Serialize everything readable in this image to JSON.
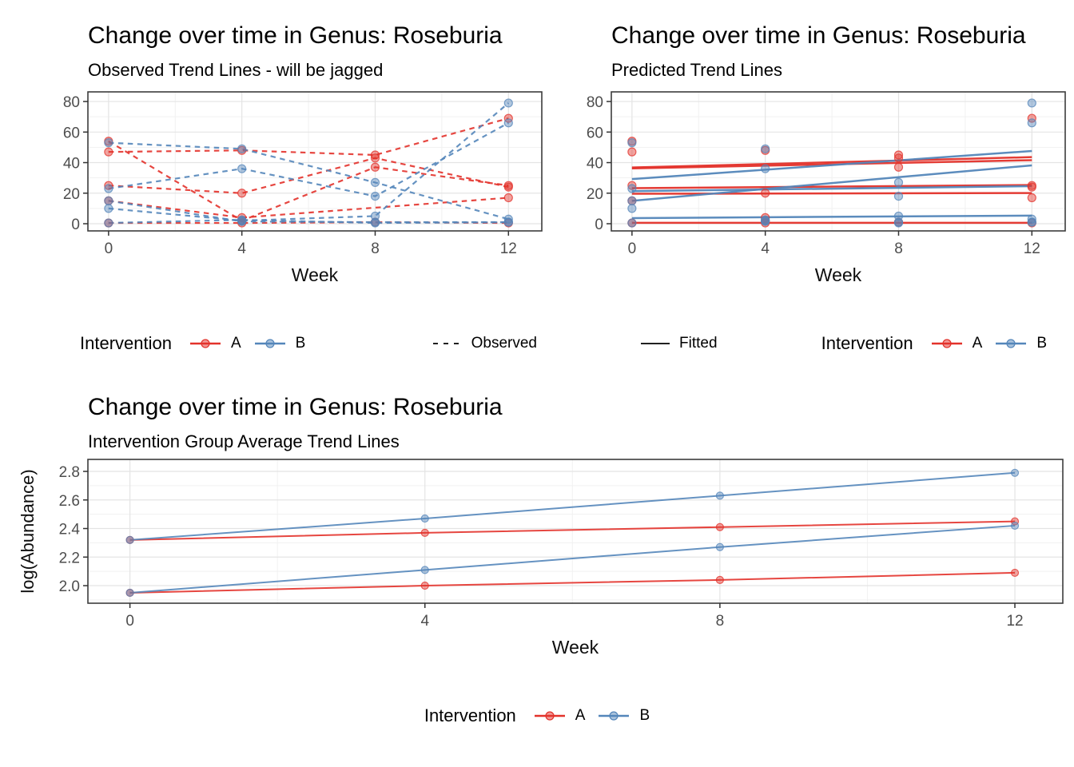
{
  "colors": {
    "intervention_a": "#e3322b",
    "intervention_b": "#5486ba",
    "key_black": "#000000",
    "axis_text": "#4d4d4d",
    "axis_title": "#0d0d0d",
    "grid_major": "#e4e4e4",
    "grid_minor": "#f1f1f1",
    "panel_border": "#3c3c3c",
    "tick_mark": "#333333"
  },
  "chart_data": [
    {
      "type": "line",
      "title": "Change over time in Genus: Roseburia",
      "subtitle": "Observed Trend Lines - will be jagged",
      "xlabel": "Week",
      "ylabel": "",
      "weeks": [
        0,
        4,
        8,
        12
      ],
      "x_ticks": [
        {
          "v": 0,
          "label": "0"
        },
        {
          "v": 4,
          "label": "4"
        },
        {
          "v": 8,
          "label": "8"
        },
        {
          "v": 12,
          "label": "12"
        }
      ],
      "x_minor": [
        2,
        6,
        10
      ],
      "y_ticks": [
        {
          "v": 0,
          "label": "0"
        },
        {
          "v": 20,
          "label": "20"
        },
        {
          "v": 40,
          "label": "40"
        },
        {
          "v": 60,
          "label": "60"
        },
        {
          "v": 80,
          "label": "80"
        }
      ],
      "y_minor": [
        10,
        30,
        50,
        70
      ],
      "x_domain": [
        -0.62,
        13.0
      ],
      "y_domain": [
        -4.7,
        86.3
      ],
      "line_style": "dashed",
      "draw_lines": true,
      "series": [
        {
          "group": "A",
          "values": [
            54,
            2,
            37,
            25
          ]
        },
        {
          "group": "A",
          "values": [
            47,
            48,
            45,
            69
          ]
        },
        {
          "group": "A",
          "values": [
            25,
            20,
            43,
            24
          ]
        },
        {
          "group": "A",
          "values": [
            15,
            4,
            null,
            17
          ]
        },
        {
          "group": "A",
          "values": [
            0.5,
            0.5,
            1,
            0.5
          ]
        },
        {
          "group": "B",
          "values": [
            53,
            49,
            27,
            3
          ]
        },
        {
          "group": "B",
          "values": [
            23,
            36,
            18,
            66
          ]
        },
        {
          "group": "B",
          "values": [
            10,
            2,
            5,
            79
          ]
        },
        {
          "group": "B",
          "values": [
            15,
            1.5,
            1,
            1
          ]
        },
        {
          "group": "B",
          "values": [
            0.5,
            2.5,
            0.5,
            1
          ]
        }
      ],
      "fits": []
    },
    {
      "type": "line",
      "title": "Change over time in Genus: Roseburia",
      "subtitle": "Predicted Trend Lines",
      "xlabel": "Week",
      "ylabel": "",
      "weeks": [
        0,
        4,
        8,
        12
      ],
      "x_ticks": [
        {
          "v": 0,
          "label": "0"
        },
        {
          "v": 4,
          "label": "4"
        },
        {
          "v": 8,
          "label": "8"
        },
        {
          "v": 12,
          "label": "12"
        }
      ],
      "x_minor": [
        2,
        6,
        10
      ],
      "y_ticks": [
        {
          "v": 0,
          "label": "0"
        },
        {
          "v": 20,
          "label": "20"
        },
        {
          "v": 40,
          "label": "40"
        },
        {
          "v": 60,
          "label": "60"
        },
        {
          "v": 80,
          "label": "80"
        }
      ],
      "y_minor": [
        10,
        30,
        50,
        70
      ],
      "x_domain": [
        -0.62,
        13.0
      ],
      "y_domain": [
        -4.7,
        86.3
      ],
      "line_style": "solid",
      "draw_lines": false,
      "series": [
        {
          "group": "A",
          "values": [
            54,
            2,
            37,
            25
          ]
        },
        {
          "group": "A",
          "values": [
            47,
            48,
            45,
            69
          ]
        },
        {
          "group": "A",
          "values": [
            25,
            20,
            43,
            24
          ]
        },
        {
          "group": "A",
          "values": [
            15,
            4,
            null,
            17
          ]
        },
        {
          "group": "A",
          "values": [
            0.5,
            0.5,
            1,
            0.5
          ]
        },
        {
          "group": "B",
          "values": [
            53,
            49,
            27,
            3
          ]
        },
        {
          "group": "B",
          "values": [
            23,
            36,
            18,
            66
          ]
        },
        {
          "group": "B",
          "values": [
            10,
            2,
            5,
            79
          ]
        },
        {
          "group": "B",
          "values": [
            15,
            1.5,
            1,
            1
          ]
        },
        {
          "group": "B",
          "values": [
            0.5,
            2.5,
            0.5,
            1
          ]
        }
      ],
      "fits": [
        {
          "group": "A",
          "y_start": 36.8,
          "y_end": 43.6
        },
        {
          "group": "A",
          "y_start": 36.2,
          "y_end": 41.6
        },
        {
          "group": "A",
          "y_start": 23.3,
          "y_end": 25.3
        },
        {
          "group": "A",
          "y_start": 19.6,
          "y_end": 20.1
        },
        {
          "group": "A",
          "y_start": 0.6,
          "y_end": 0.6
        },
        {
          "group": "B",
          "y_start": 29.2,
          "y_end": 47.6
        },
        {
          "group": "B",
          "y_start": 15.0,
          "y_end": 38.2
        },
        {
          "group": "B",
          "y_start": 21.3,
          "y_end": 24.6
        },
        {
          "group": "B",
          "y_start": 3.7,
          "y_end": 5.3
        }
      ]
    },
    {
      "type": "line",
      "title": "Change over time in Genus: Roseburia",
      "subtitle": "Intervention Group Average Trend Lines",
      "xlabel": "Week",
      "ylabel": "log(Abundance)",
      "weeks": [
        0,
        4,
        8,
        12
      ],
      "x_ticks": [
        {
          "v": 0,
          "label": "0"
        },
        {
          "v": 4,
          "label": "4"
        },
        {
          "v": 8,
          "label": "8"
        },
        {
          "v": 12,
          "label": "12"
        }
      ],
      "x_minor": [
        2,
        6,
        10
      ],
      "y_ticks": [
        {
          "v": 2.0,
          "label": "2.0"
        },
        {
          "v": 2.2,
          "label": "2.2"
        },
        {
          "v": 2.4,
          "label": "2.4"
        },
        {
          "v": 2.6,
          "label": "2.6"
        },
        {
          "v": 2.8,
          "label": "2.8"
        }
      ],
      "y_minor": [
        1.9,
        2.1,
        2.3,
        2.5,
        2.7
      ],
      "x_domain": [
        -0.57,
        12.65
      ],
      "y_domain": [
        1.877,
        2.884
      ],
      "line_style": "solid",
      "draw_lines": true,
      "series": [
        {
          "group": "A",
          "values": [
            2.32,
            2.37,
            2.41,
            2.45
          ]
        },
        {
          "group": "B",
          "values": [
            2.32,
            2.47,
            2.63,
            2.79
          ]
        },
        {
          "group": "A",
          "values": [
            1.95,
            2.0,
            2.04,
            2.09
          ]
        },
        {
          "group": "B",
          "values": [
            1.95,
            2.11,
            2.27,
            2.42
          ]
        }
      ],
      "fits": []
    }
  ],
  "legends": [
    {
      "groups": [
        {
          "title": "Intervention",
          "items": [
            {
              "label": "A",
              "glyph": "line-point",
              "color": "A"
            },
            {
              "label": "B",
              "glyph": "line-point",
              "color": "B"
            }
          ]
        },
        {
          "title": "",
          "items": [
            {
              "label": "Observed",
              "glyph": "dashed-line",
              "color": "black"
            }
          ]
        }
      ]
    },
    {
      "groups": [
        {
          "title": "",
          "items": [
            {
              "label": "Fitted",
              "glyph": "solid-line",
              "color": "black"
            }
          ]
        },
        {
          "title": "Intervention",
          "items": [
            {
              "label": "A",
              "glyph": "line-point",
              "color": "A"
            },
            {
              "label": "B",
              "glyph": "line-point",
              "color": "B"
            }
          ]
        }
      ]
    },
    {
      "groups": [
        {
          "title": "Intervention",
          "items": [
            {
              "label": "A",
              "glyph": "line-point",
              "color": "A"
            },
            {
              "label": "B",
              "glyph": "line-point",
              "color": "B"
            }
          ]
        }
      ]
    }
  ]
}
